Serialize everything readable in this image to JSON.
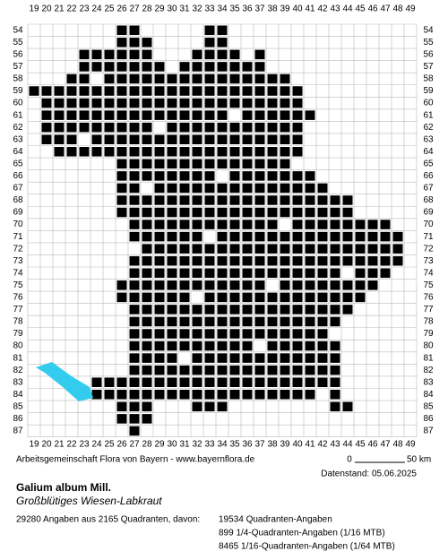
{
  "grid": {
    "columns": [
      19,
      20,
      21,
      22,
      23,
      24,
      25,
      26,
      27,
      28,
      29,
      30,
      31,
      32,
      33,
      34,
      35,
      36,
      37,
      38,
      39,
      40,
      41,
      42,
      43,
      44,
      45,
      46,
      47,
      48,
      49
    ],
    "rows": [
      54,
      55,
      56,
      57,
      58,
      59,
      60,
      61,
      62,
      63,
      64,
      65,
      66,
      67,
      68,
      69,
      70,
      71,
      72,
      73,
      74,
      75,
      76,
      77,
      78,
      79,
      80,
      81,
      82,
      83,
      84,
      85,
      86,
      87
    ]
  },
  "footer": {
    "credit": "Arbeitsgemeinschaft Flora von Bayern - www.bayernflora.de",
    "scale_start": "0",
    "scale_end": "50 km",
    "date": "Datenstand: 05.06.2025"
  },
  "species": {
    "name": "Galium album Mill.",
    "common_name": "Großblütiges Wiesen-Labkraut"
  },
  "stats": {
    "summary": "29280 Angaben aus 2165 Quadranten, davon:",
    "lines": [
      "19534 Quadranten-Angaben",
      "899 1/4-Quadranten-Angaben (1/16 MTB)",
      "8465 1/16-Quadranten-Angaben (1/64 MTB)"
    ]
  }
}
